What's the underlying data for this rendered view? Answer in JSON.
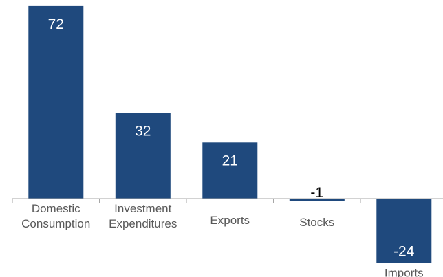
{
  "chart_data": {
    "type": "bar",
    "title": "",
    "xlabel": "",
    "ylabel": "",
    "categories": [
      "Domestic Consumption",
      "Investment Expenditures",
      "Exports",
      "Stocks",
      "Imports"
    ],
    "category_lines": [
      [
        "Domestic",
        "Consumption"
      ],
      [
        "Investment",
        "Expenditures"
      ],
      [
        "Exports"
      ],
      [
        "Stocks"
      ],
      [
        "Imports"
      ]
    ],
    "values": [
      72,
      32,
      21,
      -1,
      -24
    ],
    "value_labels": [
      "72",
      "32",
      "21",
      "-1",
      "-24"
    ],
    "ylim": [
      -24,
      72
    ],
    "grid": false,
    "legend": "none",
    "bar_color": "#1f497d",
    "axis_color": "#a6a6a6"
  }
}
